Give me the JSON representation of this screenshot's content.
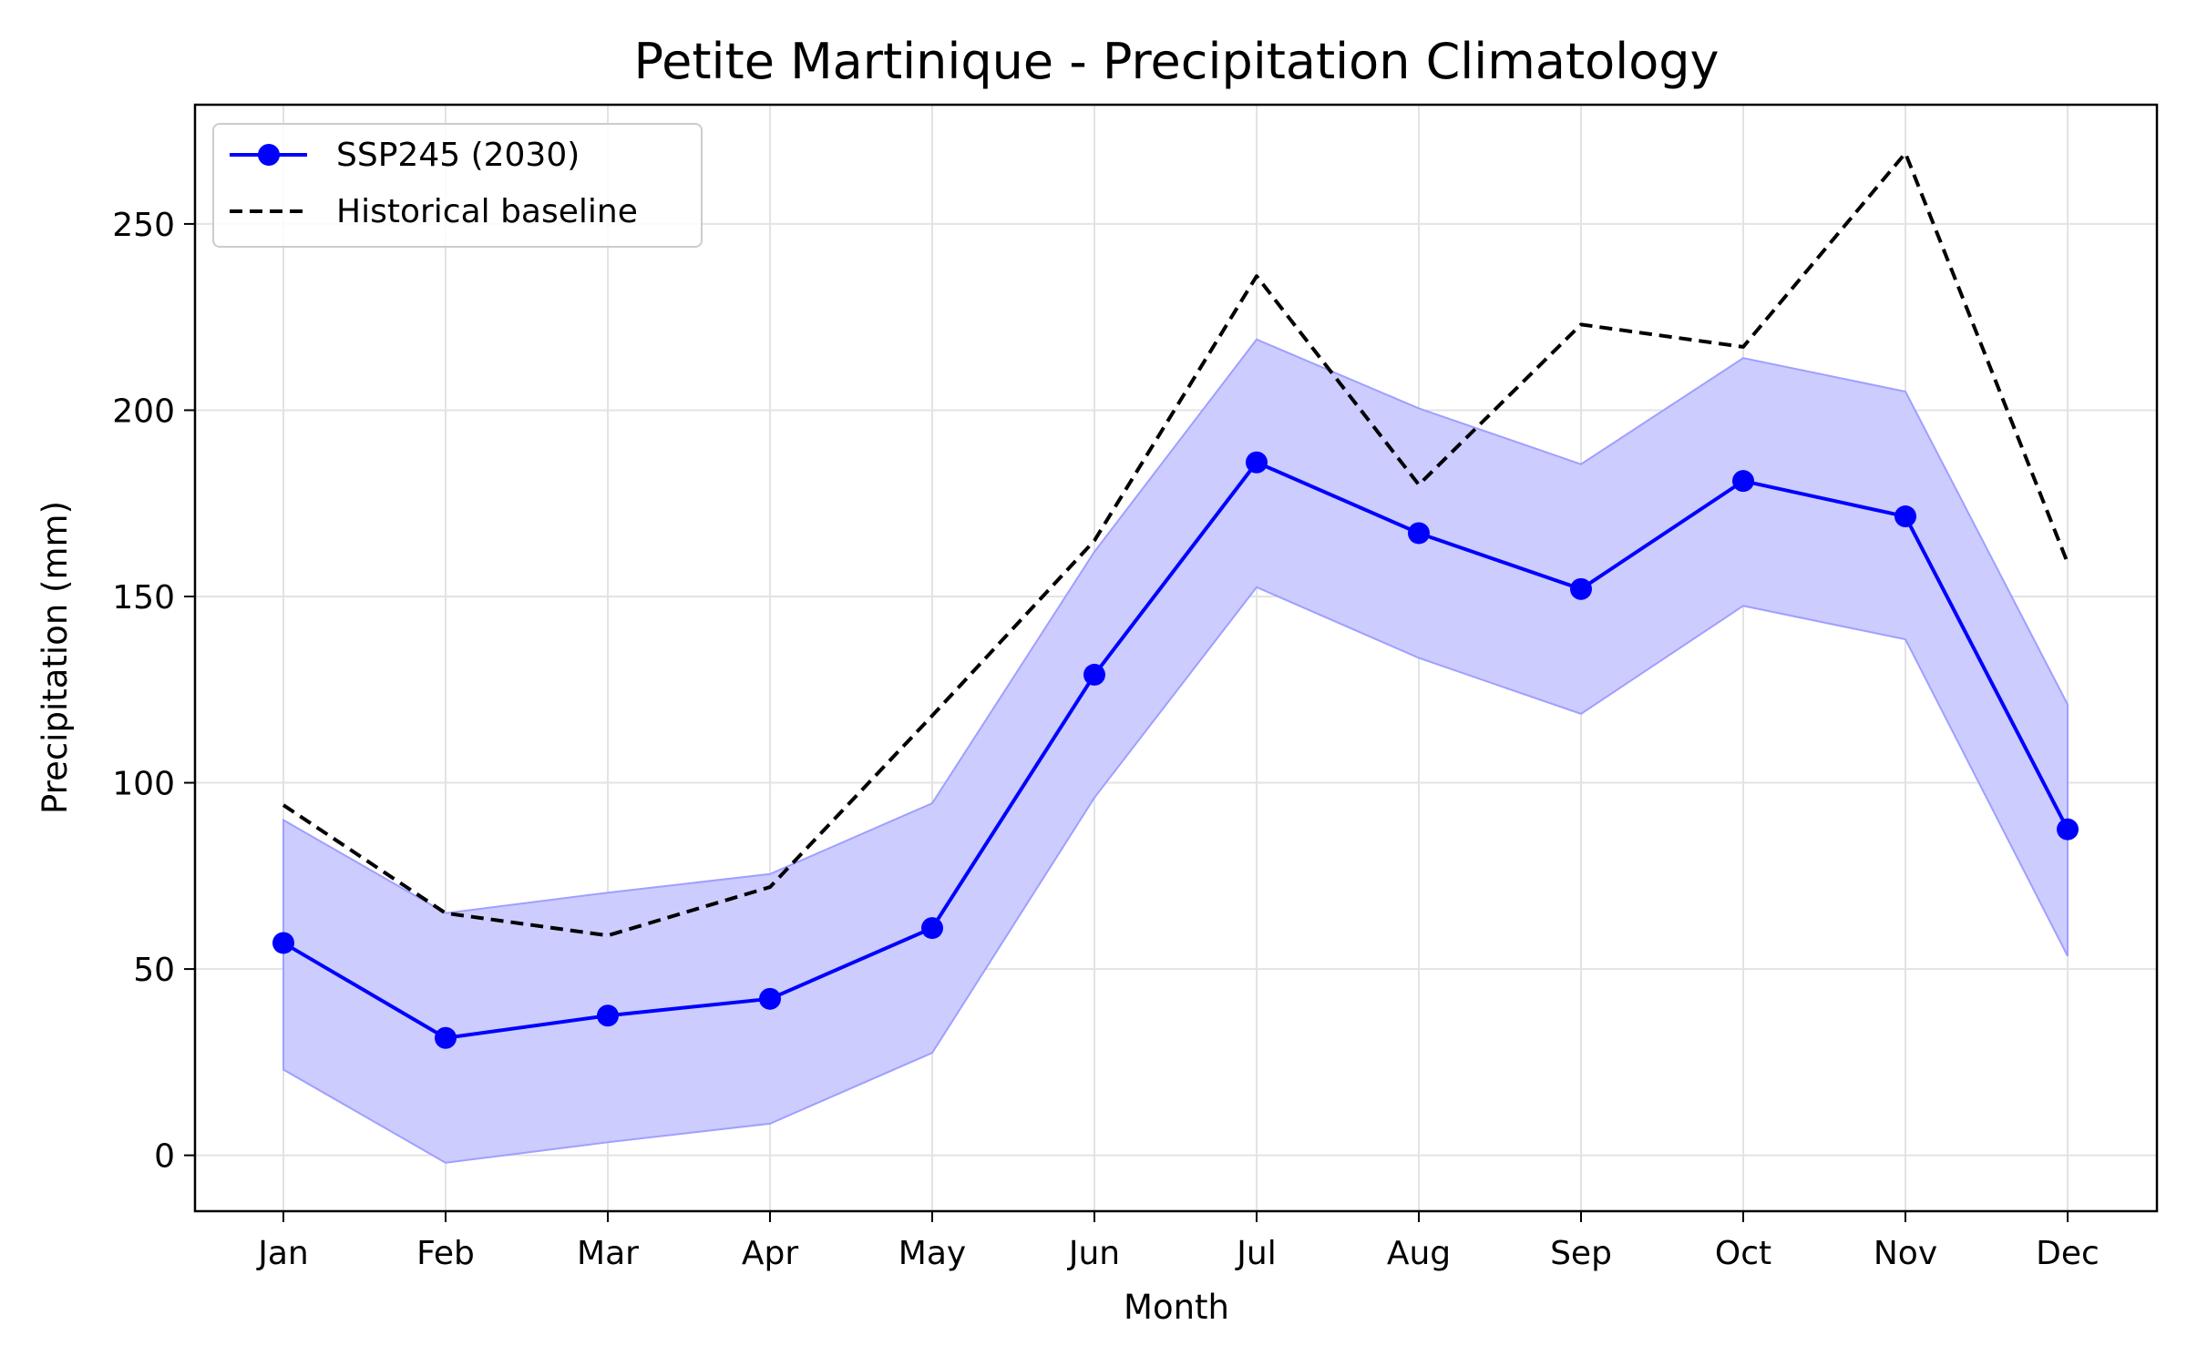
{
  "chart_data": {
    "type": "line",
    "title": "Petite Martinique - Precipitation Climatology",
    "xlabel": "Month",
    "ylabel": "Precipitation (mm)",
    "categories": [
      "Jan",
      "Feb",
      "Mar",
      "Apr",
      "May",
      "Jun",
      "Jul",
      "Aug",
      "Sep",
      "Oct",
      "Nov",
      "Dec"
    ],
    "ylim": [
      -15,
      282
    ],
    "yticks": [
      0,
      50,
      100,
      150,
      200,
      250
    ],
    "grid": true,
    "legend_position": "top-left",
    "series": [
      {
        "name": "SSP245 (2030)",
        "style": "solid line with circle markers",
        "color": "#0000ff",
        "values": [
          57,
          31.5,
          37.5,
          42,
          61,
          129,
          186,
          167,
          152,
          181,
          171.5,
          87.5
        ],
        "range_band": {
          "lower": [
            23,
            -2,
            3.5,
            8.5,
            27.5,
            96,
            152.5,
            133.5,
            118.5,
            147.5,
            138.5,
            53.5
          ],
          "upper": [
            90,
            65,
            70.5,
            75.5,
            94.5,
            162,
            219,
            200.5,
            185.5,
            214,
            205,
            121
          ],
          "color": "#ccccff"
        }
      },
      {
        "name": "Historical baseline",
        "style": "dashed line",
        "color": "#000000",
        "values": [
          94,
          65,
          59,
          72,
          118,
          165,
          236,
          180,
          223,
          217,
          269,
          159
        ]
      }
    ]
  }
}
